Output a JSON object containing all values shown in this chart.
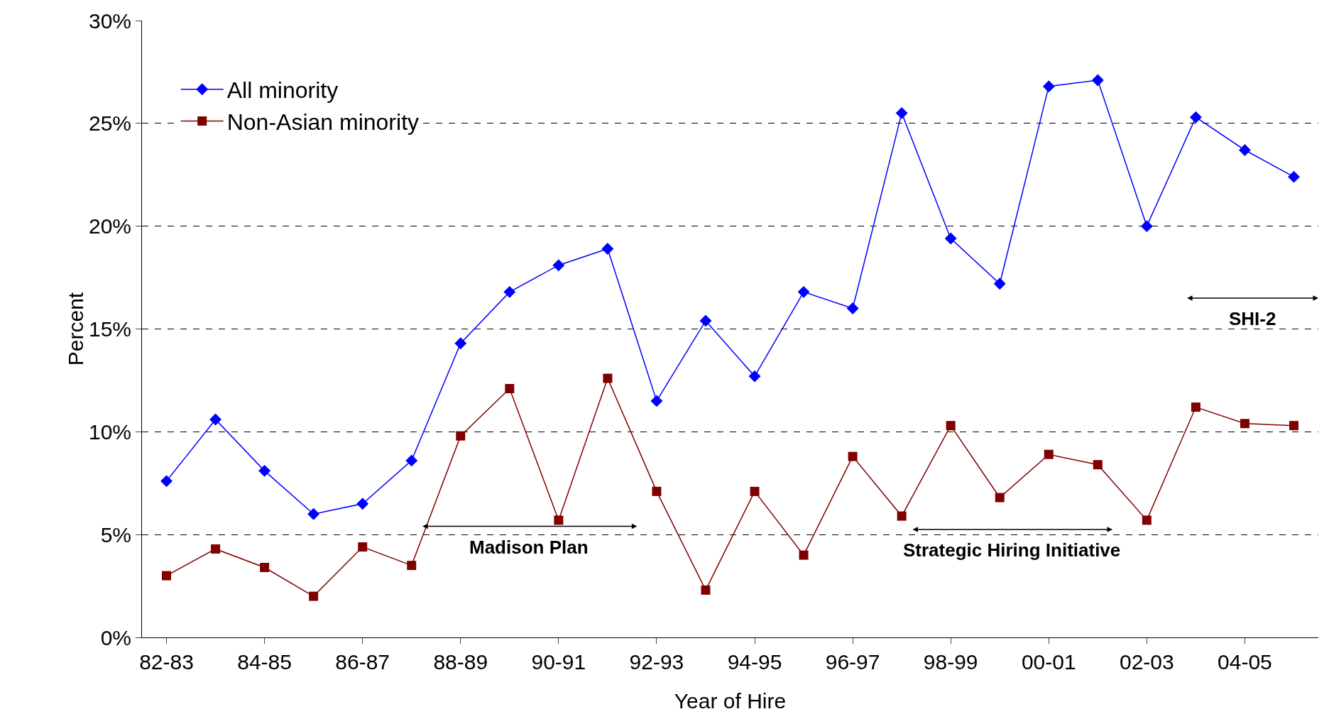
{
  "chart_data": {
    "type": "line",
    "xlabel": "Year of Hire",
    "ylabel": "Percent",
    "categories": [
      "82-83",
      null,
      "84-85",
      null,
      "86-87",
      null,
      "88-89",
      null,
      "90-91",
      null,
      "92-93",
      null,
      "94-95",
      null,
      "96-97",
      null,
      "98-99",
      null,
      "00-01",
      null,
      "02-03",
      null,
      "04-05",
      null
    ],
    "series": [
      {
        "name": "All minority",
        "color": "#0000ff",
        "marker": "diamond",
        "values": [
          7.6,
          10.6,
          8.1,
          6.0,
          6.5,
          8.6,
          14.3,
          16.8,
          18.1,
          18.9,
          11.5,
          15.4,
          12.7,
          16.8,
          16.0,
          25.5,
          19.4,
          17.2,
          26.8,
          27.1,
          20.0,
          25.3,
          23.7,
          22.4
        ]
      },
      {
        "name": "Non-Asian minority",
        "color": "#800000",
        "marker": "square",
        "values": [
          3.0,
          4.3,
          3.4,
          2.0,
          4.4,
          3.5,
          9.8,
          12.1,
          5.7,
          12.6,
          7.1,
          2.3,
          7.1,
          4.0,
          8.8,
          5.9,
          10.3,
          6.8,
          8.9,
          8.4,
          5.7,
          11.2,
          10.4,
          10.3
        ]
      }
    ],
    "ylim": [
      0,
      30
    ],
    "yticks": [
      {
        "value": 0,
        "label": "0%"
      },
      {
        "value": 5,
        "label": "5%"
      },
      {
        "value": 10,
        "label": "10%"
      },
      {
        "value": 15,
        "label": "15%"
      },
      {
        "value": 20,
        "label": "20%"
      },
      {
        "value": 25,
        "label": "25%"
      },
      {
        "value": 30,
        "label": "30%"
      }
    ],
    "annotations": [
      "Madison Plan",
      "Strategic Hiring Initiative",
      "SHI-2"
    ],
    "grid": "y",
    "legend": "top left",
    "line_style": "solid"
  }
}
